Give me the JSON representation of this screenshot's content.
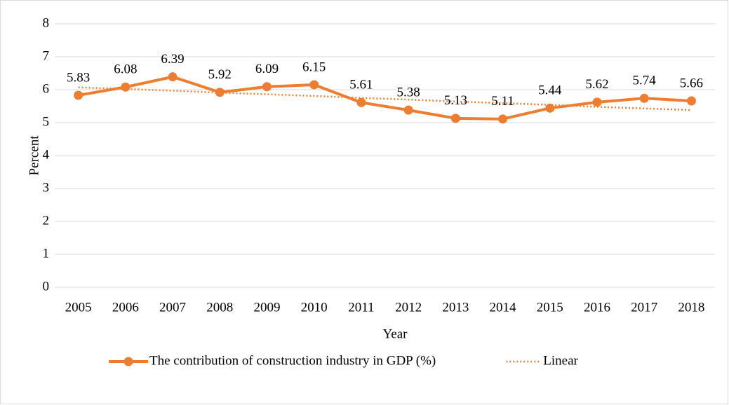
{
  "chart_data": {
    "type": "line",
    "x_label": "Year",
    "y_label": "Percent",
    "categories": [
      "2005",
      "2006",
      "2007",
      "2008",
      "2009",
      "2010",
      "2011",
      "2012",
      "2013",
      "2014",
      "2015",
      "2016",
      "2017",
      "2018"
    ],
    "series": [
      {
        "name": "The contribution of construction industry in GDP (%)",
        "color": "#ED7D31",
        "values": [
          5.83,
          6.08,
          6.39,
          5.92,
          6.09,
          6.15,
          5.61,
          5.38,
          5.13,
          5.11,
          5.44,
          5.62,
          5.74,
          5.66
        ]
      },
      {
        "name": "Linear",
        "color": "#ED7D31",
        "dotted": true,
        "values": [
          6.07,
          6.02,
          5.97,
          5.91,
          5.86,
          5.81,
          5.75,
          5.7,
          5.64,
          5.59,
          5.54,
          5.48,
          5.43,
          5.38
        ]
      }
    ],
    "ylim": [
      0,
      8
    ],
    "yticks": [
      0,
      1,
      2,
      3,
      4,
      5,
      6,
      7,
      8
    ],
    "grid": true,
    "legend": "bottom"
  }
}
